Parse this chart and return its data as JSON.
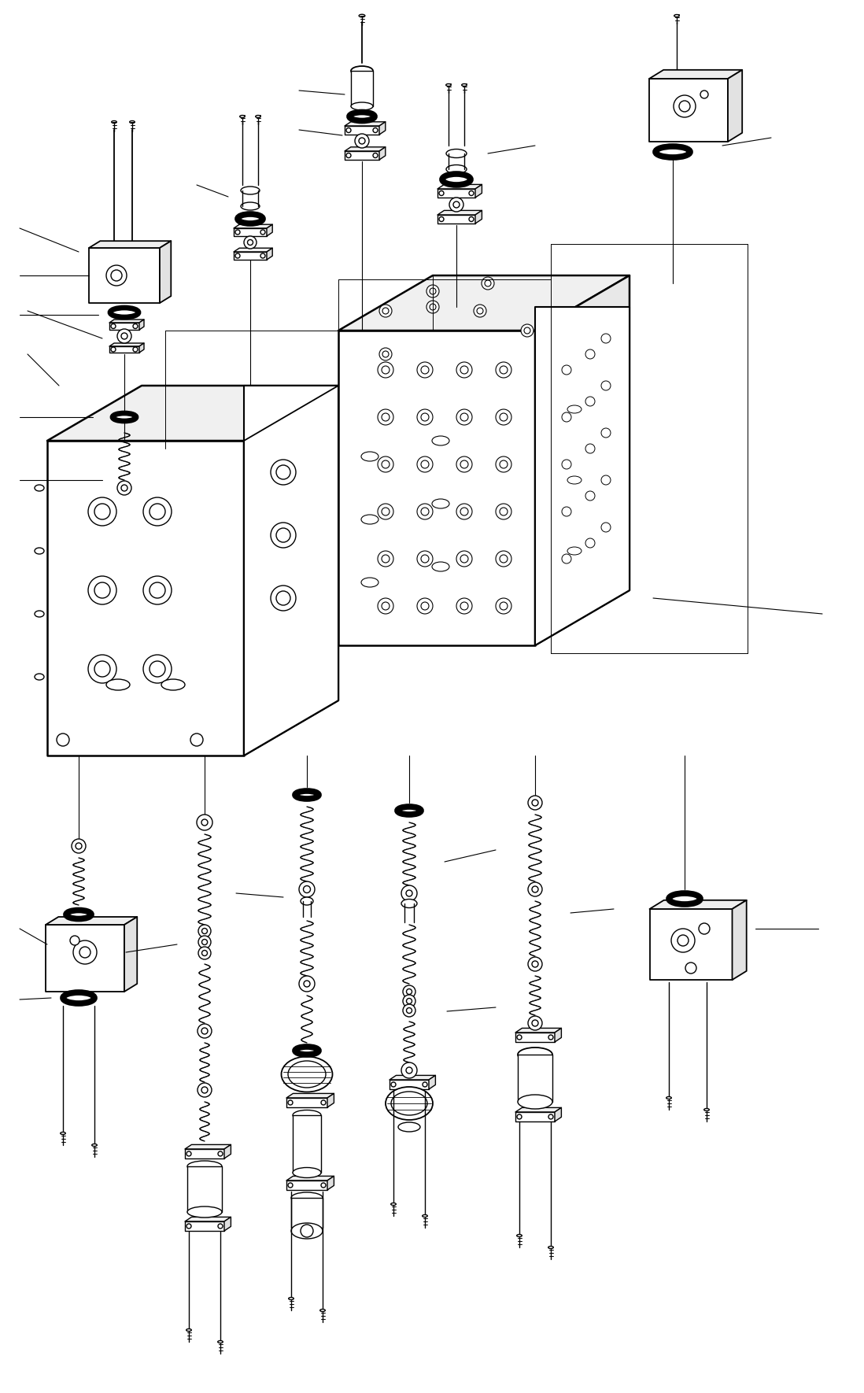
{
  "bg_color": "#ffffff",
  "line_color": "#000000",
  "lw": 1.0,
  "fig_width": 10.98,
  "fig_height": 17.7,
  "dpi": 100
}
